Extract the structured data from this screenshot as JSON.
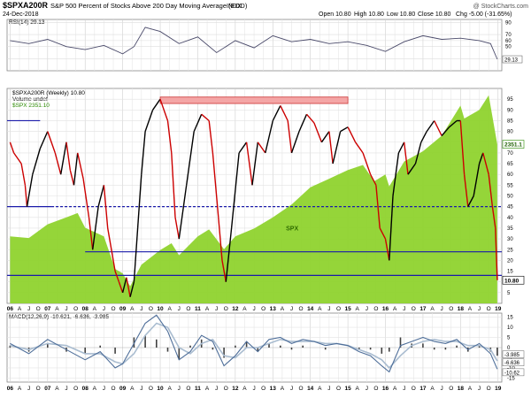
{
  "header": {
    "symbol": "$SPXA200R",
    "description": "S&P 500 Percent of Stocks Above 200 Day Moving Average (EOD)",
    "exchange": "INDX",
    "date": "24-Dec-2018",
    "copyright": "@ StockCharts.com",
    "quote": {
      "open": "Open 10.80",
      "high": "High 10.80",
      "low": "Low 10.80",
      "close": "Close 10.80",
      "chg": "Chg -5.00 (-31.65%)"
    }
  },
  "colors": {
    "spx_fill": "#8fd32e",
    "rsi_line": "#4a4a6a",
    "price_up": "#000000",
    "price_down": "#cc0000",
    "blue": "#1a1aaa",
    "box_fill": "#f4a6a6",
    "box_stroke": "#cc3333",
    "macd_line": "#4e6e99",
    "signal_line": "#a9bcd0",
    "hist": "#404040"
  },
  "chart_data": [
    {
      "type": "line",
      "panel": "rsi",
      "legend": "RSI(14) 29.13",
      "last_label": "29.13",
      "ylim": [
        10,
        95
      ],
      "yticks": [
        30,
        50,
        60,
        70,
        90
      ],
      "x": [
        2006.0,
        2006.5,
        2007.0,
        2007.5,
        2008.0,
        2008.5,
        2009.0,
        2009.3,
        2009.6,
        2010.0,
        2010.5,
        2011.0,
        2011.5,
        2012.0,
        2012.5,
        2013.0,
        2013.5,
        2014.0,
        2014.5,
        2015.0,
        2015.5,
        2016.0,
        2016.5,
        2017.0,
        2017.5,
        2018.0,
        2018.5,
        2018.8,
        2018.98
      ],
      "values": [
        60,
        55,
        62,
        50,
        45,
        52,
        38,
        50,
        82,
        75,
        55,
        66,
        40,
        60,
        48,
        68,
        58,
        62,
        55,
        58,
        52,
        42,
        58,
        68,
        62,
        64,
        60,
        55,
        29
      ]
    },
    {
      "type": "line",
      "panel": "main",
      "legend": [
        "$SPXA200R (Weekly) 10.80",
        "Volume undef",
        "$SPX 2351.10"
      ],
      "last_label": "10.80",
      "spx_last_label": "2351.1",
      "series_label": "SPX",
      "ylim": [
        0,
        100
      ],
      "yticks": [
        5,
        10,
        15,
        20,
        25,
        30,
        35,
        40,
        45,
        50,
        55,
        60,
        65,
        70,
        75,
        80,
        85,
        90,
        95
      ],
      "xticks": [
        {
          "x": 2006.0,
          "label": "06"
        },
        {
          "x": 2006.25,
          "label": "A"
        },
        {
          "x": 2006.5,
          "label": "J"
        },
        {
          "x": 2006.75,
          "label": "O"
        },
        {
          "x": 2007.0,
          "label": "07"
        },
        {
          "x": 2007.25,
          "label": "A"
        },
        {
          "x": 2007.5,
          "label": "J"
        },
        {
          "x": 2007.75,
          "label": "O"
        },
        {
          "x": 2008.0,
          "label": "08"
        },
        {
          "x": 2008.25,
          "label": "A"
        },
        {
          "x": 2008.5,
          "label": "J"
        },
        {
          "x": 2008.75,
          "label": "O"
        },
        {
          "x": 2009.0,
          "label": "09"
        },
        {
          "x": 2009.25,
          "label": "A"
        },
        {
          "x": 2009.5,
          "label": "J"
        },
        {
          "x": 2009.75,
          "label": "O"
        },
        {
          "x": 2010.0,
          "label": "10"
        },
        {
          "x": 2010.25,
          "label": "A"
        },
        {
          "x": 2010.5,
          "label": "J"
        },
        {
          "x": 2010.75,
          "label": "O"
        },
        {
          "x": 2011.0,
          "label": "11"
        },
        {
          "x": 2011.25,
          "label": "A"
        },
        {
          "x": 2011.5,
          "label": "J"
        },
        {
          "x": 2011.75,
          "label": "O"
        },
        {
          "x": 2012.0,
          "label": "12"
        },
        {
          "x": 2012.25,
          "label": "A"
        },
        {
          "x": 2012.5,
          "label": "J"
        },
        {
          "x": 2012.75,
          "label": "O"
        },
        {
          "x": 2013.0,
          "label": "13"
        },
        {
          "x": 2013.25,
          "label": "A"
        },
        {
          "x": 2013.5,
          "label": "J"
        },
        {
          "x": 2013.75,
          "label": "O"
        },
        {
          "x": 2014.0,
          "label": "14"
        },
        {
          "x": 2014.25,
          "label": "A"
        },
        {
          "x": 2014.5,
          "label": "J"
        },
        {
          "x": 2014.75,
          "label": "O"
        },
        {
          "x": 2015.0,
          "label": "15"
        },
        {
          "x": 2015.25,
          "label": "A"
        },
        {
          "x": 2015.5,
          "label": "J"
        },
        {
          "x": 2015.75,
          "label": "O"
        },
        {
          "x": 2016.0,
          "label": "16"
        },
        {
          "x": 2016.25,
          "label": "A"
        },
        {
          "x": 2016.5,
          "label": "J"
        },
        {
          "x": 2016.75,
          "label": "O"
        },
        {
          "x": 2017.0,
          "label": "17"
        },
        {
          "x": 2017.25,
          "label": "A"
        },
        {
          "x": 2017.5,
          "label": "J"
        },
        {
          "x": 2017.75,
          "label": "O"
        },
        {
          "x": 2018.0,
          "label": "18"
        },
        {
          "x": 2018.25,
          "label": "A"
        },
        {
          "x": 2018.5,
          "label": "J"
        },
        {
          "x": 2018.75,
          "label": "O"
        },
        {
          "x": 2019.0,
          "label": "19"
        }
      ],
      "xlim": [
        2005.92,
        2019.1
      ],
      "spx": {
        "x": [
          2006.0,
          2006.5,
          2007.0,
          2007.5,
          2007.8,
          2008.0,
          2008.5,
          2008.8,
          2009.0,
          2009.2,
          2009.5,
          2010.0,
          2010.3,
          2010.5,
          2011.0,
          2011.3,
          2011.7,
          2012.0,
          2012.5,
          2013.0,
          2013.5,
          2014.0,
          2014.5,
          2015.0,
          2015.4,
          2015.7,
          2016.0,
          2016.1,
          2016.5,
          2017.0,
          2017.5,
          2018.0,
          2018.1,
          2018.5,
          2018.75,
          2018.98
        ],
        "values": [
          1280,
          1260,
          1420,
          1500,
          1550,
          1380,
          1280,
          900,
          850,
          700,
          950,
          1120,
          1200,
          1060,
          1280,
          1360,
          1130,
          1280,
          1370,
          1500,
          1650,
          1850,
          1950,
          2050,
          2110,
          1920,
          2000,
          1860,
          2150,
          2270,
          2450,
          2800,
          2650,
          2750,
          2920,
          2351.1
        ]
      },
      "spx_range": [
        500,
        3000
      ],
      "breadth": {
        "x": [
          2006.0,
          2006.1,
          2006.3,
          2006.4,
          2006.45,
          2006.6,
          2006.8,
          2007.0,
          2007.2,
          2007.35,
          2007.5,
          2007.6,
          2007.7,
          2007.8,
          2007.95,
          2008.1,
          2008.2,
          2008.35,
          2008.5,
          2008.6,
          2008.8,
          2008.9,
          2009.0,
          2009.1,
          2009.2,
          2009.3,
          2009.4,
          2009.5,
          2009.6,
          2009.8,
          2010.0,
          2010.2,
          2010.3,
          2010.4,
          2010.5,
          2010.7,
          2010.9,
          2011.1,
          2011.3,
          2011.4,
          2011.55,
          2011.65,
          2011.75,
          2011.9,
          2012.1,
          2012.3,
          2012.45,
          2012.6,
          2012.8,
          2013.0,
          2013.2,
          2013.4,
          2013.5,
          2013.7,
          2013.9,
          2014.1,
          2014.3,
          2014.5,
          2014.6,
          2014.8,
          2015.0,
          2015.2,
          2015.4,
          2015.6,
          2015.75,
          2015.85,
          2016.0,
          2016.1,
          2016.2,
          2016.35,
          2016.5,
          2016.6,
          2016.8,
          2016.95,
          2017.1,
          2017.3,
          2017.5,
          2017.7,
          2017.9,
          2018.0,
          2018.1,
          2018.2,
          2018.35,
          2018.5,
          2018.6,
          2018.75,
          2018.85,
          2018.93,
          2018.98
        ],
        "values": [
          75,
          70,
          65,
          55,
          45,
          60,
          72,
          80,
          70,
          60,
          75,
          62,
          55,
          70,
          58,
          40,
          25,
          45,
          55,
          35,
          15,
          10,
          5,
          12,
          3,
          10,
          35,
          60,
          80,
          90,
          95,
          85,
          70,
          40,
          30,
          55,
          80,
          88,
          85,
          70,
          40,
          20,
          10,
          35,
          70,
          75,
          55,
          75,
          70,
          85,
          92,
          85,
          70,
          80,
          88,
          84,
          75,
          80,
          65,
          80,
          82,
          75,
          70,
          60,
          55,
          35,
          30,
          20,
          50,
          70,
          75,
          60,
          65,
          75,
          80,
          85,
          78,
          82,
          85,
          85,
          60,
          45,
          50,
          65,
          70,
          60,
          45,
          35,
          10.8
        ]
      },
      "resistance_box": {
        "x": [
          2010.0,
          2015.0
        ],
        "y": [
          93,
          96
        ]
      },
      "hlines": [
        {
          "y": 85,
          "x": [
            2005.92,
            2006.8
          ],
          "style": "solid"
        },
        {
          "y": 45,
          "x": [
            2005.92,
            2007.1
          ],
          "style": "solid"
        },
        {
          "y": 45,
          "x": [
            2007.1,
            2019.1
          ],
          "style": "dashed"
        },
        {
          "y": 24,
          "x": [
            2008.0,
            2019.1
          ],
          "style": "solid"
        },
        {
          "y": 13,
          "x": [
            2005.92,
            2019.1
          ],
          "style": "solid"
        }
      ]
    },
    {
      "type": "line",
      "panel": "macd",
      "legend": "MACD(12,26,9) -10.621, -6.636, -3.985",
      "labels": [
        "-3.985",
        "-6.636",
        "-10.62"
      ],
      "ylim": [
        -17,
        17
      ],
      "yticks": [
        15,
        10,
        5,
        0,
        -5,
        -10,
        -15
      ],
      "x": [
        2006.0,
        2006.5,
        2007.0,
        2007.5,
        2008.0,
        2008.4,
        2008.8,
        2009.0,
        2009.3,
        2009.6,
        2009.9,
        2010.2,
        2010.5,
        2010.8,
        2011.1,
        2011.4,
        2011.7,
        2012.0,
        2012.3,
        2012.6,
        2012.9,
        2013.2,
        2013.5,
        2013.8,
        2014.1,
        2014.4,
        2014.7,
        2015.0,
        2015.3,
        2015.6,
        2015.9,
        2016.1,
        2016.4,
        2016.7,
        2017.0,
        2017.3,
        2017.6,
        2017.9,
        2018.2,
        2018.5,
        2018.8,
        2018.98
      ],
      "macd": [
        2,
        -3,
        4,
        -1,
        -6,
        -2,
        -10,
        -8,
        2,
        12,
        16,
        8,
        -6,
        -2,
        6,
        3,
        -9,
        -4,
        3,
        -2,
        4,
        5,
        2,
        4,
        3,
        1,
        2,
        1,
        -2,
        -4,
        -9,
        -12,
        1,
        3,
        5,
        3,
        2,
        4,
        -1,
        2,
        -3,
        -10.6
      ],
      "signal": [
        1,
        -1,
        2,
        1,
        -3,
        -3,
        -7,
        -8,
        -3,
        6,
        12,
        10,
        0,
        -3,
        2,
        4,
        -4,
        -5,
        0,
        0,
        2,
        4,
        3,
        3,
        3,
        2,
        2,
        1,
        -1,
        -3,
        -6,
        -10,
        -4,
        1,
        3,
        4,
        3,
        3,
        1,
        1,
        -1,
        -6.6
      ]
    }
  ]
}
